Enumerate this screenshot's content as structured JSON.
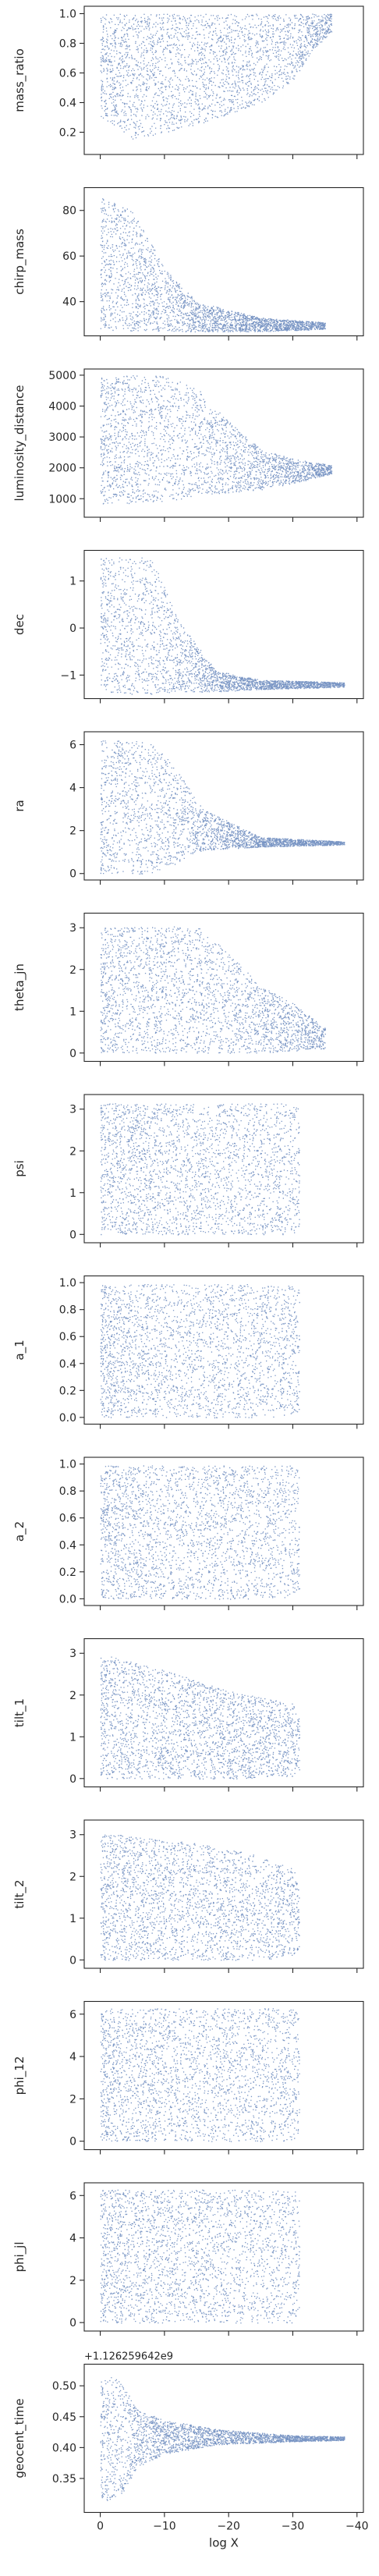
{
  "figure": {
    "xlabel": "log X",
    "x_tick_labels": [
      "0",
      "−10",
      "−20",
      "−30",
      "−40"
    ],
    "point_color": "#4c72b0",
    "axis_color": "#262626"
  },
  "chart_data": [
    {
      "type": "scatter",
      "ylabel": "mass_ratio",
      "xlim": [
        2.5,
        -41
      ],
      "ylim": [
        0.05,
        1.05
      ],
      "yticks": [
        {
          "v": 0.2,
          "label": "0.2"
        },
        {
          "v": 0.4,
          "label": "0.4"
        },
        {
          "v": 0.6,
          "label": "0.6"
        },
        {
          "v": 0.8,
          "label": "0.8"
        },
        {
          "v": 1.0,
          "label": "1.0"
        }
      ],
      "profile": [
        {
          "x": 0,
          "lo": 0.3,
          "hi": 1.0
        },
        {
          "x": -5,
          "lo": 0.15,
          "hi": 1.0
        },
        {
          "x": -15,
          "lo": 0.25,
          "hi": 1.0
        },
        {
          "x": -25,
          "lo": 0.4,
          "hi": 1.0
        },
        {
          "x": -30,
          "lo": 0.55,
          "hi": 1.0
        },
        {
          "x": -33,
          "lo": 0.75,
          "hi": 1.0
        },
        {
          "x": -36,
          "lo": 0.88,
          "hi": 1.0
        }
      ]
    },
    {
      "type": "scatter",
      "ylabel": "chirp_mass",
      "xlim": [
        2.5,
        -41
      ],
      "ylim": [
        25,
        90
      ],
      "yticks": [
        {
          "v": 40,
          "label": "40"
        },
        {
          "v": 60,
          "label": "60"
        },
        {
          "v": 80,
          "label": "80"
        }
      ],
      "profile": [
        {
          "x": 0,
          "lo": 28,
          "hi": 86
        },
        {
          "x": -5,
          "lo": 27,
          "hi": 80
        },
        {
          "x": -10,
          "lo": 27,
          "hi": 55
        },
        {
          "x": -15,
          "lo": 27,
          "hi": 40
        },
        {
          "x": -25,
          "lo": 27,
          "hi": 33
        },
        {
          "x": -35,
          "lo": 28,
          "hi": 31
        }
      ]
    },
    {
      "type": "scatter",
      "ylabel": "luminosity_distance",
      "xlim": [
        2.5,
        -41
      ],
      "ylim": [
        400,
        5200
      ],
      "yticks": [
        {
          "v": 1000,
          "label": "1000"
        },
        {
          "v": 2000,
          "label": "2000"
        },
        {
          "v": 3000,
          "label": "3000"
        },
        {
          "v": 4000,
          "label": "4000"
        },
        {
          "v": 5000,
          "label": "5000"
        }
      ],
      "profile": [
        {
          "x": 0,
          "lo": 800,
          "hi": 5000
        },
        {
          "x": -10,
          "lo": 900,
          "hi": 5000
        },
        {
          "x": -15,
          "lo": 1100,
          "hi": 4600
        },
        {
          "x": -20,
          "lo": 1200,
          "hi": 3500
        },
        {
          "x": -25,
          "lo": 1300,
          "hi": 2600
        },
        {
          "x": -30,
          "lo": 1500,
          "hi": 2300
        },
        {
          "x": -36,
          "lo": 1800,
          "hi": 2100
        }
      ]
    },
    {
      "type": "scatter",
      "ylabel": "dec",
      "xlim": [
        2.5,
        -41
      ],
      "ylim": [
        -1.5,
        1.65
      ],
      "yticks": [
        {
          "v": -1,
          "label": "−1"
        },
        {
          "v": 0,
          "label": "0"
        },
        {
          "v": 1,
          "label": "1"
        }
      ],
      "profile": [
        {
          "x": 0,
          "lo": -1.4,
          "hi": 1.5
        },
        {
          "x": -8,
          "lo": -1.4,
          "hi": 1.5
        },
        {
          "x": -12,
          "lo": -1.35,
          "hi": 0.2
        },
        {
          "x": -18,
          "lo": -1.35,
          "hi": -0.9
        },
        {
          "x": -25,
          "lo": -1.3,
          "hi": -1.1
        },
        {
          "x": -38,
          "lo": -1.25,
          "hi": -1.15
        }
      ]
    },
    {
      "type": "scatter",
      "ylabel": "ra",
      "xlim": [
        2.5,
        -41
      ],
      "ylim": [
        -0.3,
        6.6
      ],
      "yticks": [
        {
          "v": 0,
          "label": "0"
        },
        {
          "v": 2,
          "label": "2"
        },
        {
          "v": 4,
          "label": "4"
        },
        {
          "v": 6,
          "label": "6"
        }
      ],
      "profile": [
        {
          "x": 0,
          "lo": 0.0,
          "hi": 6.2
        },
        {
          "x": -8,
          "lo": 0.0,
          "hi": 6.2
        },
        {
          "x": -12,
          "lo": 0.5,
          "hi": 4.8
        },
        {
          "x": -16,
          "lo": 1.1,
          "hi": 3.0
        },
        {
          "x": -25,
          "lo": 1.25,
          "hi": 1.7
        },
        {
          "x": -38,
          "lo": 1.35,
          "hi": 1.5
        }
      ]
    },
    {
      "type": "scatter",
      "ylabel": "theta_jn",
      "xlim": [
        2.5,
        -41
      ],
      "ylim": [
        -0.2,
        3.35
      ],
      "yticks": [
        {
          "v": 0,
          "label": "0"
        },
        {
          "v": 1,
          "label": "1"
        },
        {
          "v": 2,
          "label": "2"
        },
        {
          "v": 3,
          "label": "3"
        }
      ],
      "profile": [
        {
          "x": 0,
          "lo": 0.0,
          "hi": 3.0
        },
        {
          "x": -15,
          "lo": 0.0,
          "hi": 3.05
        },
        {
          "x": -20,
          "lo": 0.0,
          "hi": 2.4
        },
        {
          "x": -25,
          "lo": 0.0,
          "hi": 1.6
        },
        {
          "x": -30,
          "lo": 0.05,
          "hi": 1.2
        },
        {
          "x": -35,
          "lo": 0.1,
          "hi": 0.6
        }
      ]
    },
    {
      "type": "scatter",
      "ylabel": "psi",
      "xlim": [
        2.5,
        -41
      ],
      "ylim": [
        -0.2,
        3.35
      ],
      "yticks": [
        {
          "v": 0,
          "label": "0"
        },
        {
          "v": 1,
          "label": "1"
        },
        {
          "v": 2,
          "label": "2"
        },
        {
          "v": 3,
          "label": "3"
        }
      ],
      "profile": [
        {
          "x": 0,
          "lo": 0.0,
          "hi": 3.14
        },
        {
          "x": -30,
          "lo": 0.0,
          "hi": 3.14
        },
        {
          "x": -31,
          "lo": 0.2,
          "hi": 3.0
        }
      ]
    },
    {
      "type": "scatter",
      "ylabel": "a_1",
      "xlim": [
        2.5,
        -41
      ],
      "ylim": [
        -0.05,
        1.05
      ],
      "yticks": [
        {
          "v": 0.0,
          "label": "0.0"
        },
        {
          "v": 0.2,
          "label": "0.2"
        },
        {
          "v": 0.4,
          "label": "0.4"
        },
        {
          "v": 0.6,
          "label": "0.6"
        },
        {
          "v": 0.8,
          "label": "0.8"
        },
        {
          "v": 1.0,
          "label": "1.0"
        }
      ],
      "profile": [
        {
          "x": 0,
          "lo": 0.0,
          "hi": 0.99
        },
        {
          "x": -30,
          "lo": 0.0,
          "hi": 0.99
        },
        {
          "x": -31,
          "lo": 0.05,
          "hi": 0.95
        }
      ]
    },
    {
      "type": "scatter",
      "ylabel": "a_2",
      "xlim": [
        2.5,
        -41
      ],
      "ylim": [
        -0.05,
        1.05
      ],
      "yticks": [
        {
          "v": 0.0,
          "label": "0.0"
        },
        {
          "v": 0.2,
          "label": "0.2"
        },
        {
          "v": 0.4,
          "label": "0.4"
        },
        {
          "v": 0.6,
          "label": "0.6"
        },
        {
          "v": 0.8,
          "label": "0.8"
        },
        {
          "v": 1.0,
          "label": "1.0"
        }
      ],
      "profile": [
        {
          "x": 0,
          "lo": 0.0,
          "hi": 0.99
        },
        {
          "x": -30,
          "lo": 0.0,
          "hi": 0.99
        },
        {
          "x": -31,
          "lo": 0.05,
          "hi": 0.95
        }
      ]
    },
    {
      "type": "scatter",
      "ylabel": "tilt_1",
      "xlim": [
        2.5,
        -41
      ],
      "ylim": [
        -0.2,
        3.35
      ],
      "yticks": [
        {
          "v": 0,
          "label": "0"
        },
        {
          "v": 1,
          "label": "1"
        },
        {
          "v": 2,
          "label": "2"
        },
        {
          "v": 3,
          "label": "3"
        }
      ],
      "profile": [
        {
          "x": 0,
          "lo": 0.0,
          "hi": 3.0
        },
        {
          "x": -10,
          "lo": 0.0,
          "hi": 2.6
        },
        {
          "x": -20,
          "lo": 0.0,
          "hi": 2.1
        },
        {
          "x": -30,
          "lo": 0.05,
          "hi": 1.8
        },
        {
          "x": -31,
          "lo": 0.2,
          "hi": 1.4
        }
      ]
    },
    {
      "type": "scatter",
      "ylabel": "tilt_2",
      "xlim": [
        2.5,
        -41
      ],
      "ylim": [
        -0.2,
        3.35
      ],
      "yticks": [
        {
          "v": 0,
          "label": "0"
        },
        {
          "v": 1,
          "label": "1"
        },
        {
          "v": 2,
          "label": "2"
        },
        {
          "v": 3,
          "label": "3"
        }
      ],
      "profile": [
        {
          "x": 0,
          "lo": 0.0,
          "hi": 3.05
        },
        {
          "x": -15,
          "lo": 0.0,
          "hi": 2.8
        },
        {
          "x": -25,
          "lo": 0.0,
          "hi": 2.5
        },
        {
          "x": -30,
          "lo": 0.1,
          "hi": 2.2
        },
        {
          "x": -31,
          "lo": 0.3,
          "hi": 1.8
        }
      ]
    },
    {
      "type": "scatter",
      "ylabel": "phi_12",
      "xlim": [
        2.5,
        -41
      ],
      "ylim": [
        -0.4,
        6.6
      ],
      "yticks": [
        {
          "v": 0,
          "label": "0"
        },
        {
          "v": 2,
          "label": "2"
        },
        {
          "v": 4,
          "label": "4"
        },
        {
          "v": 6,
          "label": "6"
        }
      ],
      "profile": [
        {
          "x": 0,
          "lo": 0.0,
          "hi": 6.28
        },
        {
          "x": -30,
          "lo": 0.0,
          "hi": 6.28
        },
        {
          "x": -31,
          "lo": 0.3,
          "hi": 6.0
        }
      ]
    },
    {
      "type": "scatter",
      "ylabel": "phi_jl",
      "xlim": [
        2.5,
        -41
      ],
      "ylim": [
        -0.4,
        6.6
      ],
      "yticks": [
        {
          "v": 0,
          "label": "0"
        },
        {
          "v": 2,
          "label": "2"
        },
        {
          "v": 4,
          "label": "4"
        },
        {
          "v": 6,
          "label": "6"
        }
      ],
      "profile": [
        {
          "x": 0,
          "lo": 0.0,
          "hi": 6.28
        },
        {
          "x": -30,
          "lo": 0.0,
          "hi": 6.28
        },
        {
          "x": -31,
          "lo": 0.4,
          "hi": 6.0
        }
      ]
    },
    {
      "type": "scatter",
      "ylabel": "geocent_time",
      "offset_text": "+1.126259642e9",
      "xlim": [
        2.5,
        -41
      ],
      "ylim": [
        0.295,
        0.535
      ],
      "yticks": [
        {
          "v": 0.35,
          "label": "0.35"
        },
        {
          "v": 0.4,
          "label": "0.40"
        },
        {
          "v": 0.45,
          "label": "0.45"
        },
        {
          "v": 0.5,
          "label": "0.50"
        }
      ],
      "profile": [
        {
          "x": 0,
          "lo": 0.31,
          "hi": 0.52
        },
        {
          "x": -3,
          "lo": 0.32,
          "hi": 0.51
        },
        {
          "x": -6,
          "lo": 0.37,
          "hi": 0.46
        },
        {
          "x": -10,
          "lo": 0.39,
          "hi": 0.445
        },
        {
          "x": -18,
          "lo": 0.405,
          "hi": 0.43
        },
        {
          "x": -30,
          "lo": 0.41,
          "hi": 0.42
        },
        {
          "x": -38,
          "lo": 0.412,
          "hi": 0.418
        }
      ]
    }
  ]
}
